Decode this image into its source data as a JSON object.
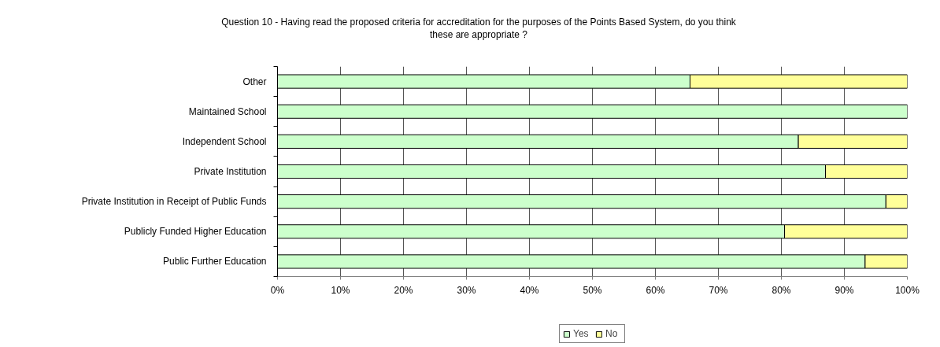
{
  "chart_data": {
    "type": "bar",
    "orientation": "horizontal",
    "stacked": true,
    "title": "Question 10 - Having read the proposed criteria for accreditation for the purposes of the Points Based System, do you think\nthese are appropriate ?",
    "categories": [
      "Other",
      "Maintained School",
      "Independent School",
      "Private Institution",
      "Private Institution in Receipt of Public Funds",
      "Publicly Funded Higher Education",
      "Public Further Education"
    ],
    "series": [
      {
        "name": "Yes",
        "color": "#ccffcc",
        "values": [
          65.5,
          100,
          82.7,
          87,
          96.6,
          80.5,
          93.3
        ]
      },
      {
        "name": "No",
        "color": "#ffff99",
        "values": [
          34.5,
          0,
          17.3,
          13,
          3.4,
          19.5,
          6.7
        ]
      }
    ],
    "xlim": [
      0,
      100
    ],
    "xticks": [
      {
        "value": 0,
        "label": "0%"
      },
      {
        "value": 10,
        "label": "10%"
      },
      {
        "value": 20,
        "label": "20%"
      },
      {
        "value": 30,
        "label": "30%"
      },
      {
        "value": 40,
        "label": "40%"
      },
      {
        "value": 50,
        "label": "50%"
      },
      {
        "value": 60,
        "label": "60%"
      },
      {
        "value": 70,
        "label": "70%"
      },
      {
        "value": 80,
        "label": "80%"
      },
      {
        "value": 90,
        "label": "90%"
      },
      {
        "value": 100,
        "label": "100%"
      }
    ],
    "grid": "x",
    "legend": "bottom"
  }
}
